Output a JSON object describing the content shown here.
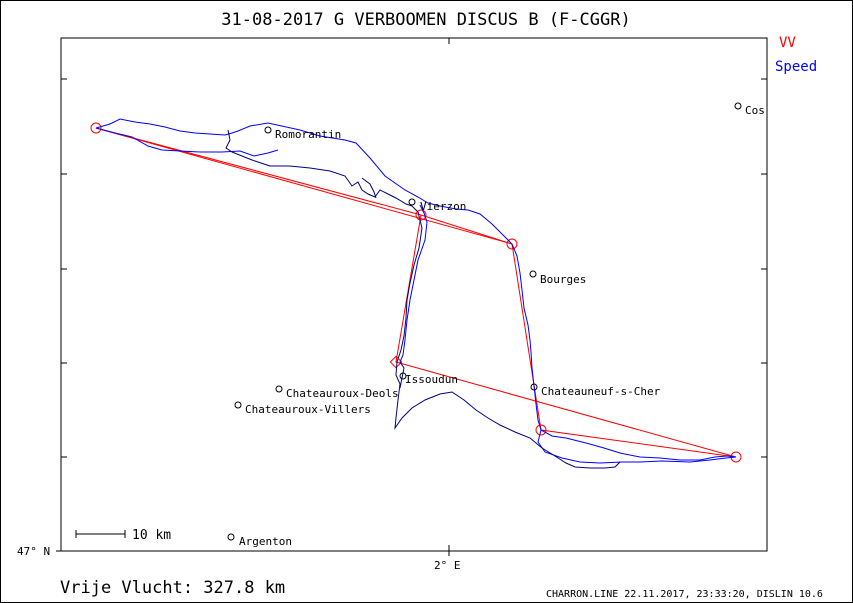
{
  "header": {
    "title": "31-08-2017   G VERBOOMEN   DISCUS B (F-CGGR)"
  },
  "legend": {
    "items": [
      {
        "label": "VV",
        "color": "#ff0000"
      },
      {
        "label": "Speed",
        "color": "#0000ff"
      }
    ]
  },
  "axes": {
    "lat_label": "47° N",
    "lon_label": "2° E"
  },
  "scale_bar": {
    "label": "10  km"
  },
  "towns": [
    {
      "name": "Romorantin"
    },
    {
      "name": "Vierzon"
    },
    {
      "name": "Bourges"
    },
    {
      "name": "Issoudun"
    },
    {
      "name": "Chateauroux-Deols"
    },
    {
      "name": "Chateauroux-Villers"
    },
    {
      "name": "Chateauneuf-s-Cher"
    },
    {
      "name": "Argenton"
    },
    {
      "name": "Cos"
    }
  ],
  "footer": {
    "distance": "Vrije Vlucht:  327.8 km",
    "credits": "CHARRON.LINE 22.11.2017, 23:33:20, DISLIN 10.6"
  },
  "colors": {
    "task_line": "#ff0000",
    "track_fast": "#0000ff",
    "track_slow": "#000080",
    "frame": "#000000"
  }
}
